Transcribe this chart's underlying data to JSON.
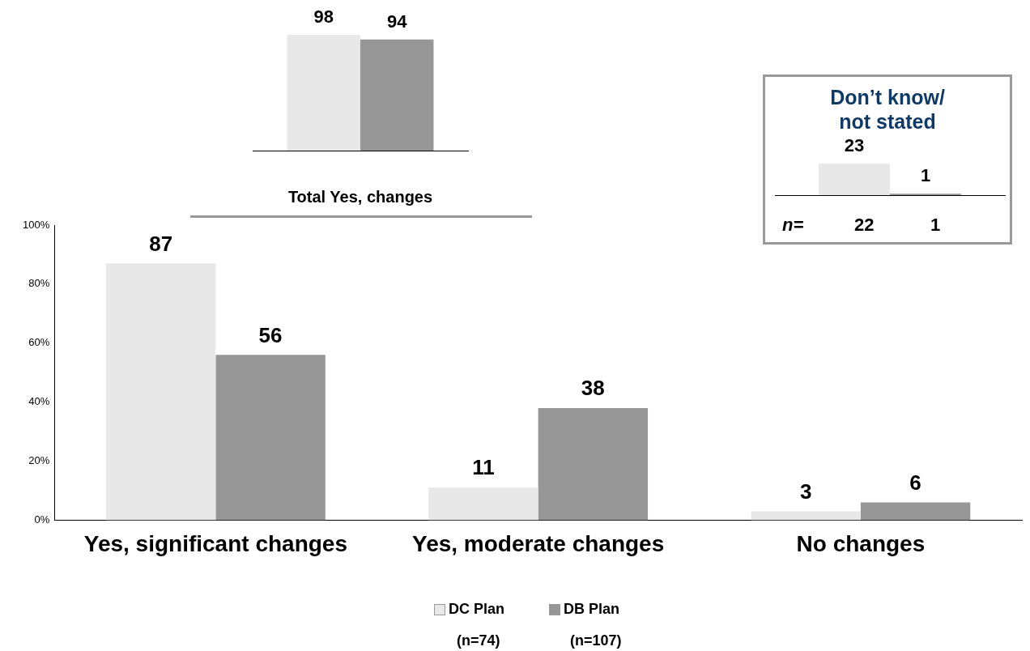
{
  "chart_data": [
    {
      "type": "bar",
      "categories": [
        "Yes, significant changes",
        "Yes, moderate changes",
        "No changes"
      ],
      "series": [
        {
          "name": "DC Plan",
          "color": "#e8e8e8",
          "values": [
            87,
            11,
            3
          ]
        },
        {
          "name": "DB Plan",
          "color": "#969696",
          "values": [
            56,
            38,
            6
          ]
        }
      ],
      "ylim": [
        0,
        100
      ],
      "yticks": [
        {
          "value": 0,
          "label": "0%"
        },
        {
          "value": 20,
          "label": "20%"
        },
        {
          "value": 40,
          "label": "40%"
        },
        {
          "value": 60,
          "label": "60%"
        },
        {
          "value": 80,
          "label": "80%"
        },
        {
          "value": 100,
          "label": "100%"
        }
      ],
      "grid": false,
      "legend": "bottom",
      "data_labels": true,
      "annotations": [
        "(n=74)",
        "(n=107)"
      ]
    },
    {
      "type": "bar",
      "categories": [
        null
      ],
      "xlabel": "Total Yes, changes",
      "series": [
        {
          "color": "#e8e8e8",
          "values": [
            98
          ]
        },
        {
          "color": "#969696",
          "values": [
            94
          ]
        }
      ],
      "tick_labels": false,
      "data_labels": true
    },
    {
      "type": "bar",
      "categories": [
        null
      ],
      "title": "Don’t know/\nnot stated",
      "series": [
        {
          "color": "#e8e8e8",
          "values": [
            23
          ]
        },
        {
          "color": "#969696",
          "values": [
            1
          ]
        }
      ],
      "tick_labels": false,
      "data_labels": true,
      "annotations": [
        "n=",
        "22",
        "1"
      ]
    }
  ]
}
